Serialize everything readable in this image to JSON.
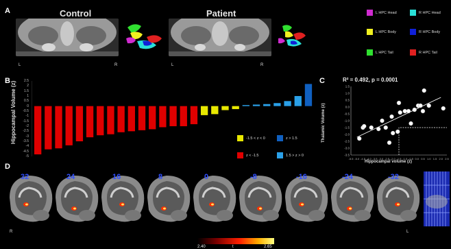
{
  "panels": {
    "a": "A",
    "b": "B",
    "c": "C",
    "d": "D"
  },
  "panel_a": {
    "control_title": "Control",
    "patient_title": "Patient",
    "left_label": "L",
    "right_label": "R",
    "legend": [
      {
        "label": "L HPC Head",
        "color": "#d02bd0"
      },
      {
        "label": "R HPC Head",
        "color": "#29e0d8"
      },
      {
        "label": "L HPC Body",
        "color": "#f0f020"
      },
      {
        "label": "R HPC Body",
        "color": "#1020d8"
      },
      {
        "label": "L HPC Tail",
        "color": "#30e030"
      },
      {
        "label": "R HPC Tail",
        "color": "#e02020"
      }
    ]
  },
  "chart_data": [
    {
      "type": "bar",
      "ylabel": "Hippocampal Volume (z)",
      "ylim": [
        -5,
        2.5
      ],
      "yticks": [
        "2.5",
        "2",
        "1.5",
        "1",
        "0.5",
        "0",
        "-0.5",
        "-1",
        "-1.5",
        "-2",
        "-2.5",
        "-3",
        "-3.5",
        "-4",
        "-4.5",
        "-5"
      ],
      "values": [
        -4.8,
        -4.3,
        -4.2,
        -3.9,
        -3.5,
        -3.1,
        -2.9,
        -2.8,
        -2.6,
        -2.5,
        -2.4,
        -2.3,
        -2.1,
        -2.0,
        -2.0,
        -1.8,
        -0.9,
        -0.8,
        -0.4,
        -0.3,
        0.1,
        0.15,
        0.2,
        0.3,
        0.5,
        1.0,
        2.2
      ],
      "bar_colors": [
        "#e00000",
        "#e00000",
        "#e00000",
        "#e00000",
        "#e00000",
        "#e00000",
        "#e00000",
        "#e00000",
        "#e00000",
        "#e00000",
        "#e00000",
        "#e00000",
        "#e00000",
        "#e00000",
        "#e00000",
        "#e00000",
        "#e8e800",
        "#e8e800",
        "#e8e800",
        "#e8e800",
        "#2aa0e8",
        "#2aa0e8",
        "#2aa0e8",
        "#2aa0e8",
        "#2aa0e8",
        "#2aa0e8",
        "#1060c0"
      ],
      "legend": [
        {
          "label": "-1.5 < z < 0",
          "color": "#e8e800"
        },
        {
          "label": "z > 1.5",
          "color": "#1060c0"
        },
        {
          "label": "z < -1.5",
          "color": "#e00000"
        },
        {
          "label": "1.5 > z > 0",
          "color": "#2aa0e8"
        }
      ]
    },
    {
      "type": "scatter",
      "annotation": "R² = 0.492, p = 0.0001",
      "xlabel": "Hippocampal volume (z)",
      "ylabel": "Thalamic Volume (z)",
      "xlim": [
        -5.5,
        2.5
      ],
      "ylim": [
        -3.5,
        1.5
      ],
      "xticks": [
        "-5.5",
        "-5.0",
        "-4.5",
        "-4.0",
        "-3.5",
        "-3.0",
        "-2.5",
        "-2.0",
        "-1.5",
        "-1.0",
        "-0.5",
        "0.0",
        "0.5",
        "1.0",
        "1.5",
        "2.0",
        "2.5"
      ],
      "yticks": [
        "1.5",
        "1.0",
        "0.5",
        "0.0",
        "-0.5",
        "-1.0",
        "-1.5",
        "-2.0",
        "-2.5",
        "-3.0",
        "-3.5"
      ],
      "points": [
        {
          "x": -4.8,
          "y": -2.3
        },
        {
          "x": -4.5,
          "y": -1.5
        },
        {
          "x": -4.4,
          "y": -1.4
        },
        {
          "x": -3.8,
          "y": -1.5
        },
        {
          "x": -3.2,
          "y": -1.6
        },
        {
          "x": -2.9,
          "y": -1.0
        },
        {
          "x": -2.6,
          "y": -1.5
        },
        {
          "x": -2.3,
          "y": -2.6
        },
        {
          "x": -2.1,
          "y": -0.7
        },
        {
          "x": -2.0,
          "y": -1.9
        },
        {
          "x": -1.6,
          "y": -1.8
        },
        {
          "x": -1.5,
          "y": 0.3
        },
        {
          "x": -1.4,
          "y": -0.4
        },
        {
          "x": -1.0,
          "y": -0.3
        },
        {
          "x": -0.7,
          "y": -0.3
        },
        {
          "x": -0.5,
          "y": -1.2
        },
        {
          "x": -0.2,
          "y": -0.2
        },
        {
          "x": 0.1,
          "y": 0.1
        },
        {
          "x": 0.3,
          "y": 0.1
        },
        {
          "x": 0.5,
          "y": -0.3
        },
        {
          "x": 0.6,
          "y": 1.2
        },
        {
          "x": 1.0,
          "y": 0.1
        },
        {
          "x": 2.2,
          "y": -0.1
        }
      ],
      "fit_line": [
        {
          "x": -5.0,
          "y": -2.2
        },
        {
          "x": 2.0,
          "y": 0.7
        }
      ]
    }
  ],
  "panel_d": {
    "slices": [
      "32",
      "24",
      "16",
      "8",
      "0",
      "-8",
      "-16",
      "-24",
      "-32"
    ],
    "right_label": "R",
    "left_label": "L",
    "colorbar": {
      "label": "t",
      "min": "2.40",
      "max": "2.65"
    }
  }
}
